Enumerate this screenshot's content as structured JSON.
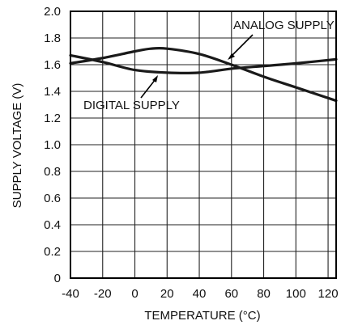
{
  "chart_data": {
    "type": "line",
    "xlabel": "TEMPERATURE (°C)",
    "ylabel": "SUPPLY VOLTAGE (V)",
    "xlim": [
      -40,
      125
    ],
    "ylim": [
      0,
      2.0
    ],
    "x_ticks": [
      "-40",
      "-20",
      "0",
      "20",
      "40",
      "60",
      "80",
      "100",
      "120"
    ],
    "y_ticks": [
      "0",
      "0.2",
      "0.4",
      "0.6",
      "0.8",
      "1.0",
      "1.2",
      "1.4",
      "1.6",
      "1.8",
      "2.0"
    ],
    "grid": true,
    "series": [
      {
        "name": "ANALOG SUPPLY",
        "x": [
          -40,
          -20,
          0,
          10,
          20,
          40,
          60,
          80,
          100,
          125
        ],
        "y": [
          1.61,
          1.65,
          1.7,
          1.72,
          1.72,
          1.68,
          1.6,
          1.51,
          1.43,
          1.33
        ]
      },
      {
        "name": "DIGITAL SUPPLY",
        "x": [
          -40,
          -20,
          0,
          20,
          40,
          60,
          80,
          100,
          125
        ],
        "y": [
          1.67,
          1.62,
          1.56,
          1.54,
          1.54,
          1.57,
          1.59,
          1.61,
          1.64
        ]
      }
    ],
    "annotations": [
      {
        "text": "ANALOG SUPPLY",
        "series": 0
      },
      {
        "text": "DIGITAL SUPPLY",
        "series": 1
      }
    ]
  }
}
